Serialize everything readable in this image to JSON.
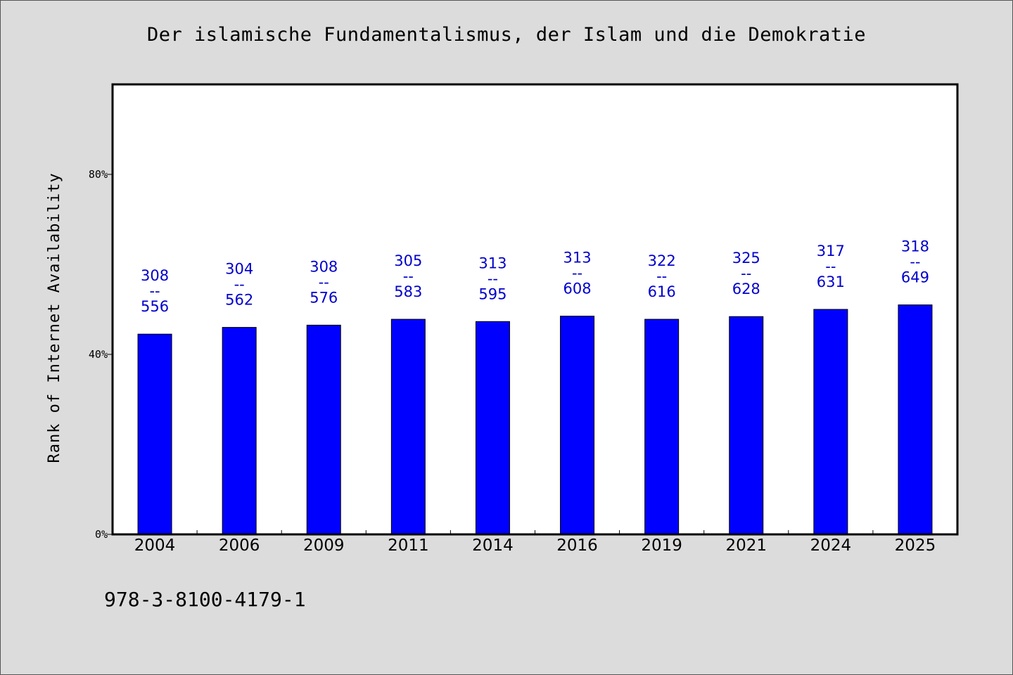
{
  "chart_data": {
    "type": "bar",
    "title": "Der islamische Fundamentalismus, der Islam und die Demokratie",
    "ylabel": "Rank of Internet Availability",
    "xlabel": "",
    "ylim": [
      0,
      100
    ],
    "yticks": [
      0,
      40,
      80
    ],
    "ytick_labels": [
      "0%",
      "40%",
      "80%"
    ],
    "categories": [
      "2004",
      "2006",
      "2009",
      "2011",
      "2014",
      "2016",
      "2019",
      "2021",
      "2024",
      "2025"
    ],
    "values": [
      44.5,
      46.0,
      46.5,
      47.8,
      47.3,
      48.5,
      47.8,
      48.4,
      50.0,
      51.0
    ],
    "bar_color": "#0000ff",
    "label_color": "#0000cc",
    "labels": [
      {
        "top": "308",
        "sep": "--",
        "bottom": "556"
      },
      {
        "top": "304",
        "sep": "--",
        "bottom": "562"
      },
      {
        "top": "308",
        "sep": "--",
        "bottom": "576"
      },
      {
        "top": "305",
        "sep": "--",
        "bottom": "583"
      },
      {
        "top": "313",
        "sep": "--",
        "bottom": "595"
      },
      {
        "top": "313",
        "sep": "--",
        "bottom": "608"
      },
      {
        "top": "322",
        "sep": "--",
        "bottom": "616"
      },
      {
        "top": "325",
        "sep": "--",
        "bottom": "628"
      },
      {
        "top": "317",
        "sep": "--",
        "bottom": "631"
      },
      {
        "top": "318",
        "sep": "--",
        "bottom": "649"
      }
    ],
    "grid": false,
    "legend": "none"
  },
  "footer": {
    "isbn": "978-3-8100-4179-1"
  }
}
